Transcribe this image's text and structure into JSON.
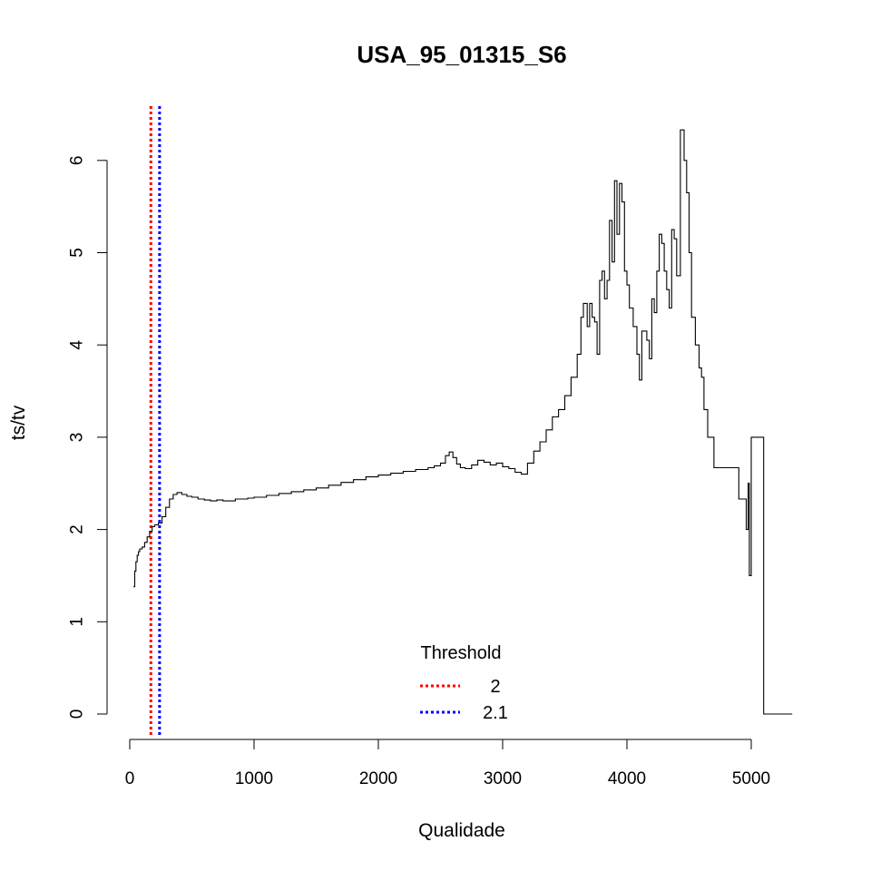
{
  "chart_data": {
    "type": "line",
    "title": "USA_95_01315_S6",
    "xlabel": "Qualidade",
    "ylabel": "ts/tv",
    "xlim": [
      0,
      5400
    ],
    "ylim": [
      0,
      6.5
    ],
    "x_ticks": [
      0,
      1000,
      2000,
      3000,
      4000,
      5000
    ],
    "y_ticks": [
      0,
      1,
      2,
      3,
      4,
      5,
      6
    ],
    "grid": false,
    "series": [
      {
        "name": "",
        "color": "#000000",
        "step": true,
        "points": [
          [
            30,
            1.38
          ],
          [
            40,
            1.55
          ],
          [
            50,
            1.65
          ],
          [
            60,
            1.72
          ],
          [
            70,
            1.76
          ],
          [
            80,
            1.79
          ],
          [
            100,
            1.81
          ],
          [
            120,
            1.86
          ],
          [
            140,
            1.92
          ],
          [
            160,
            1.98
          ],
          [
            180,
            2.03
          ],
          [
            200,
            2.05
          ],
          [
            230,
            2.07
          ],
          [
            260,
            2.14
          ],
          [
            290,
            2.24
          ],
          [
            320,
            2.33
          ],
          [
            350,
            2.38
          ],
          [
            380,
            2.4
          ],
          [
            420,
            2.38
          ],
          [
            460,
            2.36
          ],
          [
            500,
            2.35
          ],
          [
            550,
            2.33
          ],
          [
            600,
            2.32
          ],
          [
            650,
            2.31
          ],
          [
            700,
            2.32
          ],
          [
            750,
            2.31
          ],
          [
            800,
            2.31
          ],
          [
            850,
            2.33
          ],
          [
            900,
            2.33
          ],
          [
            950,
            2.34
          ],
          [
            1000,
            2.35
          ],
          [
            1100,
            2.37
          ],
          [
            1200,
            2.39
          ],
          [
            1300,
            2.41
          ],
          [
            1400,
            2.43
          ],
          [
            1500,
            2.45
          ],
          [
            1600,
            2.48
          ],
          [
            1700,
            2.51
          ],
          [
            1800,
            2.54
          ],
          [
            1900,
            2.57
          ],
          [
            2000,
            2.59
          ],
          [
            2100,
            2.61
          ],
          [
            2200,
            2.63
          ],
          [
            2300,
            2.65
          ],
          [
            2400,
            2.67
          ],
          [
            2450,
            2.69
          ],
          [
            2500,
            2.72
          ],
          [
            2540,
            2.8
          ],
          [
            2570,
            2.84
          ],
          [
            2600,
            2.78
          ],
          [
            2630,
            2.71
          ],
          [
            2660,
            2.67
          ],
          [
            2700,
            2.66
          ],
          [
            2750,
            2.7
          ],
          [
            2800,
            2.75
          ],
          [
            2850,
            2.73
          ],
          [
            2900,
            2.7
          ],
          [
            2950,
            2.72
          ],
          [
            3000,
            2.68
          ],
          [
            3050,
            2.66
          ],
          [
            3100,
            2.62
          ],
          [
            3150,
            2.6
          ],
          [
            3200,
            2.72
          ],
          [
            3250,
            2.85
          ],
          [
            3300,
            2.95
          ],
          [
            3350,
            3.08
          ],
          [
            3400,
            3.22
          ],
          [
            3450,
            3.3
          ],
          [
            3500,
            3.45
          ],
          [
            3550,
            3.65
          ],
          [
            3600,
            3.9
          ],
          [
            3630,
            4.3
          ],
          [
            3650,
            4.45
          ],
          [
            3680,
            4.2
          ],
          [
            3700,
            4.45
          ],
          [
            3720,
            4.3
          ],
          [
            3740,
            4.25
          ],
          [
            3760,
            3.9
          ],
          [
            3780,
            4.7
          ],
          [
            3800,
            4.8
          ],
          [
            3820,
            4.5
          ],
          [
            3840,
            4.7
          ],
          [
            3860,
            5.35
          ],
          [
            3880,
            4.9
          ],
          [
            3900,
            5.78
          ],
          [
            3920,
            5.2
          ],
          [
            3940,
            5.75
          ],
          [
            3960,
            5.55
          ],
          [
            3980,
            4.8
          ],
          [
            4000,
            4.65
          ],
          [
            4020,
            4.4
          ],
          [
            4050,
            4.2
          ],
          [
            4080,
            3.9
          ],
          [
            4100,
            3.62
          ],
          [
            4120,
            4.15
          ],
          [
            4160,
            4.05
          ],
          [
            4180,
            3.85
          ],
          [
            4200,
            4.5
          ],
          [
            4220,
            4.35
          ],
          [
            4240,
            4.8
          ],
          [
            4260,
            5.2
          ],
          [
            4280,
            5.1
          ],
          [
            4300,
            4.8
          ],
          [
            4320,
            4.6
          ],
          [
            4340,
            4.4
          ],
          [
            4360,
            5.25
          ],
          [
            4380,
            5.15
          ],
          [
            4400,
            4.75
          ],
          [
            4430,
            6.33
          ],
          [
            4460,
            6.0
          ],
          [
            4480,
            5.65
          ],
          [
            4500,
            5.0
          ],
          [
            4520,
            4.3
          ],
          [
            4550,
            4.0
          ],
          [
            4580,
            3.75
          ],
          [
            4600,
            3.65
          ],
          [
            4620,
            3.3
          ],
          [
            4650,
            3.0
          ],
          [
            4700,
            2.67
          ],
          [
            4800,
            2.67
          ],
          [
            4900,
            2.33
          ],
          [
            4960,
            2.0
          ],
          [
            4975,
            2.5
          ],
          [
            4985,
            1.5
          ],
          [
            5000,
            3.0
          ],
          [
            5100,
            0.0
          ],
          [
            5330,
            0.0
          ]
        ]
      }
    ],
    "vlines": [
      {
        "x": 170,
        "color": "#ff0000",
        "style": "dotted"
      },
      {
        "x": 240,
        "color": "#0000ff",
        "style": "dotted"
      }
    ],
    "legend": {
      "title": "Threshold",
      "placement": "bottom-center",
      "entries": [
        {
          "label": "2",
          "color": "#ff0000"
        },
        {
          "label": "2.1",
          "color": "#0000ff"
        }
      ]
    }
  }
}
